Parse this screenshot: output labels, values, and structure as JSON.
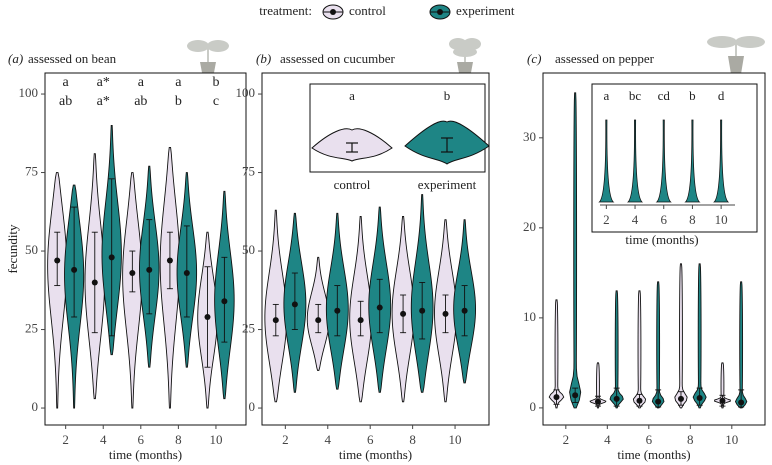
{
  "chart_data": [
    {
      "type": "violin",
      "label": "(a)",
      "title": "assessed on bean",
      "ylabel": "fecundity",
      "xlabel": "time (months)",
      "legend_title": "treatment:",
      "x": [
        2,
        4,
        6,
        8,
        10
      ],
      "xlim": [
        0.9,
        11.6
      ],
      "xticks": [
        2,
        4,
        6,
        8,
        10
      ],
      "ylim": [
        -5.4,
        106.7
      ],
      "yticks": [
        0,
        25,
        50,
        75,
        100
      ],
      "letters": [
        [
          "a",
          "a*",
          "a",
          "a",
          "b"
        ],
        [
          "ab",
          "a*",
          "ab",
          "b",
          "c"
        ]
      ],
      "series": [
        {
          "name": "control",
          "color": "#e9e0ee",
          "mean": [
            47,
            40,
            43,
            47,
            29
          ],
          "lo": [
            39,
            24,
            37,
            38,
            13
          ],
          "hi": [
            56,
            56,
            50,
            56,
            45
          ],
          "min": [
            0,
            3,
            0,
            0,
            0
          ],
          "max": [
            75,
            81,
            75,
            83,
            56
          ]
        },
        {
          "name": "experiment",
          "color": "#1e8585",
          "mean": [
            44,
            48,
            44,
            43,
            34
          ],
          "lo": [
            29,
            23,
            30,
            29,
            21
          ],
          "hi": [
            64,
            73,
            60,
            58,
            48
          ],
          "min": [
            0,
            17,
            13,
            13,
            3
          ],
          "max": [
            71,
            90,
            77,
            75,
            69
          ]
        }
      ]
    },
    {
      "type": "violin",
      "label": "(b)",
      "title": "assessed on cucumber",
      "xlabel": "time (months)",
      "x": [
        2,
        4,
        6,
        8,
        10
      ],
      "xlim": [
        0.9,
        11.6
      ],
      "xticks": [
        2,
        4,
        6,
        8,
        10
      ],
      "ylim": [
        -5.4,
        106.7
      ],
      "yticks": [
        0,
        25,
        50,
        75,
        100
      ],
      "inset": {
        "categories": [
          "control",
          "experiment"
        ],
        "letters": [
          "a",
          "b"
        ]
      },
      "series": [
        {
          "color": "#e9e0ee",
          "mean": [
            28,
            28,
            28,
            30,
            30
          ],
          "lo": [
            23,
            24,
            23,
            24,
            24
          ],
          "hi": [
            33,
            33,
            34,
            36,
            36
          ],
          "min": [
            2,
            12,
            2,
            2,
            2
          ],
          "max": [
            63,
            48,
            61,
            61,
            60
          ]
        },
        {
          "color": "#1e8585",
          "mean": [
            33,
            31,
            32,
            31,
            31
          ],
          "lo": [
            25,
            23,
            24,
            22,
            23
          ],
          "hi": [
            43,
            39,
            41,
            40,
            39
          ],
          "min": [
            5,
            6,
            5,
            5,
            8
          ],
          "max": [
            62,
            62,
            64,
            68,
            60
          ]
        }
      ]
    },
    {
      "type": "violin",
      "label": "(c)",
      "title": "assessed on pepper",
      "xlabel": "time (months)",
      "x": [
        2,
        4,
        6,
        8,
        10
      ],
      "xlim": [
        0.9,
        11.6
      ],
      "xticks": [
        2,
        4,
        6,
        8,
        10
      ],
      "ylim": [
        -1.9,
        37.2
      ],
      "yticks": [
        0,
        10,
        20,
        30
      ],
      "inset": {
        "xticks": [
          2,
          4,
          6,
          8,
          10
        ],
        "xlabel": "time (months)",
        "letters": [
          "a",
          "bc",
          "cd",
          "b",
          "d"
        ]
      },
      "series": [
        {
          "color": "#e9e0ee",
          "mean": [
            1.2,
            0.7,
            0.8,
            1.0,
            0.8
          ],
          "lo": [
            0.4,
            0.2,
            0.2,
            0.3,
            0.2
          ],
          "hi": [
            2.0,
            1.3,
            1.5,
            1.8,
            1.4
          ],
          "min": [
            0,
            0,
            0,
            0,
            0
          ],
          "max": [
            12,
            5,
            13,
            16,
            5
          ]
        },
        {
          "color": "#1e8585",
          "mean": [
            1.4,
            1.0,
            0.7,
            1.1,
            0.6
          ],
          "lo": [
            0.6,
            0.2,
            0.1,
            0.3,
            0.1
          ],
          "hi": [
            2.2,
            2.2,
            2.0,
            2.2,
            2.0
          ],
          "min": [
            0,
            0,
            0,
            0,
            0
          ],
          "max": [
            35,
            13,
            14,
            16,
            14
          ]
        }
      ]
    }
  ]
}
